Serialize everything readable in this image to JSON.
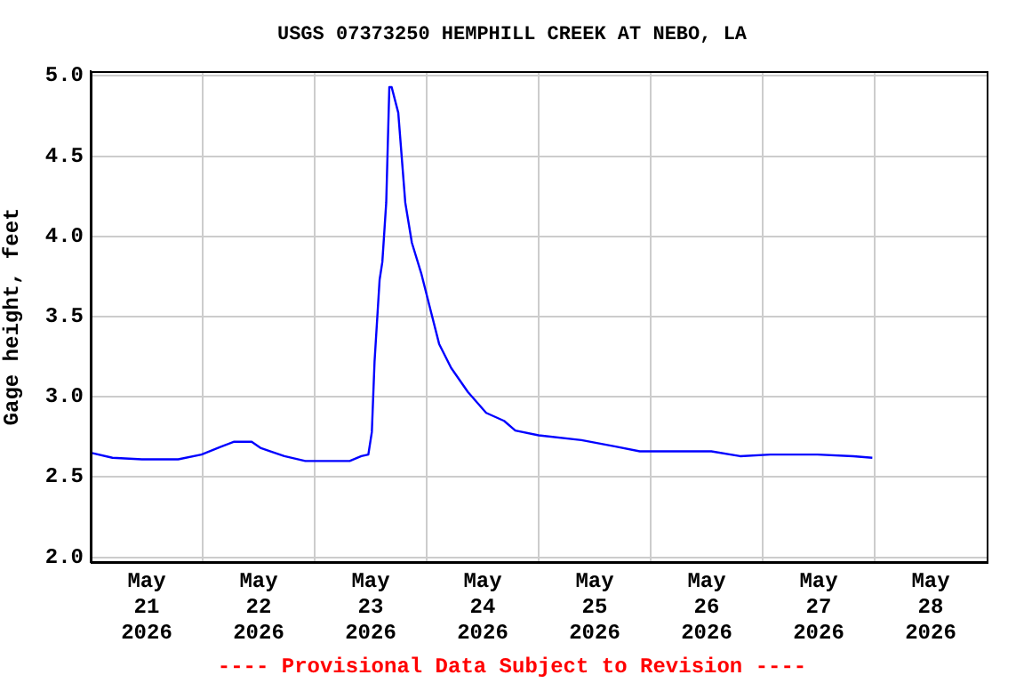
{
  "chart_data": {
    "type": "line",
    "title": "USGS 07373250 HEMPHILL CREEK AT NEBO, LA",
    "ylabel": "Gage height, feet",
    "annotations": [
      "---- Provisional Data Subject to Revision ----"
    ],
    "x": [
      "2026-05-21T00:15",
      "2026-05-21T04:40",
      "2026-05-21T11:00",
      "2026-05-21T18:45",
      "2026-05-21T23:45",
      "2026-05-22T04:00",
      "2026-05-22T06:45",
      "2026-05-22T10:30",
      "2026-05-22T12:30",
      "2026-05-22T17:30",
      "2026-05-22T22:00",
      "2026-05-23T07:30",
      "2026-05-23T10:00",
      "2026-05-23T11:30",
      "2026-05-23T12:15",
      "2026-05-23T12:50",
      "2026-05-23T13:55",
      "2026-05-23T14:30",
      "2026-05-23T15:20",
      "2026-05-23T16:00",
      "2026-05-23T16:30",
      "2026-05-23T17:55",
      "2026-05-23T19:25",
      "2026-05-23T20:50",
      "2026-05-23T22:50",
      "2026-05-24T00:45",
      "2026-05-24T02:40",
      "2026-05-24T05:15",
      "2026-05-24T08:50",
      "2026-05-24T12:45",
      "2026-05-24T16:35",
      "2026-05-24T19:00",
      "2026-05-25T00:00",
      "2026-05-25T09:10",
      "2026-05-25T16:30",
      "2026-05-25T21:40",
      "2026-05-26T13:00",
      "2026-05-26T19:10",
      "2026-05-27T01:40",
      "2026-05-27T11:45",
      "2026-05-27T19:25",
      "2026-05-27T23:30"
    ],
    "series": [
      {
        "color": "#0000ff",
        "values": [
          2.65,
          2.62,
          2.61,
          2.61,
          2.64,
          2.69,
          2.72,
          2.72,
          2.68,
          2.63,
          2.6,
          2.6,
          2.63,
          2.64,
          2.78,
          3.22,
          3.73,
          3.84,
          4.21,
          4.93,
          4.93,
          4.77,
          4.21,
          3.96,
          3.77,
          3.55,
          3.33,
          3.18,
          3.03,
          2.9,
          2.85,
          2.79,
          2.76,
          2.73,
          2.69,
          2.66,
          2.66,
          2.63,
          2.64,
          2.64,
          2.63,
          2.62
        ]
      }
    ],
    "xlim": [
      "2026-05-21T00:00",
      "2026-05-29T00:00"
    ],
    "xticks": [
      {
        "value": "2026-05-21T12:00",
        "label": "May 21 2026"
      },
      {
        "value": "2026-05-22T00:00",
        "label": null
      },
      {
        "value": "2026-05-22T12:00",
        "label": "May 22 2026"
      },
      {
        "value": "2026-05-23T00:00",
        "label": null
      },
      {
        "value": "2026-05-23T12:00",
        "label": "May 23 2026"
      },
      {
        "value": "2026-05-24T00:00",
        "label": null
      },
      {
        "value": "2026-05-24T12:00",
        "label": "May 24 2026"
      },
      {
        "value": "2026-05-25T00:00",
        "label": null
      },
      {
        "value": "2026-05-25T12:00",
        "label": "May 25 2026"
      },
      {
        "value": "2026-05-26T00:00",
        "label": null
      },
      {
        "value": "2026-05-26T12:00",
        "label": "May 26 2026"
      },
      {
        "value": "2026-05-27T00:00",
        "label": null
      },
      {
        "value": "2026-05-27T12:00",
        "label": "May 27 2026"
      },
      {
        "value": "2026-05-28T00:00",
        "label": null
      },
      {
        "value": "2026-05-28T12:00",
        "label": "May 28 2026"
      }
    ],
    "ylim": [
      1.97,
      5.03
    ],
    "yticks": [
      {
        "value": 2,
        "label": "2.0"
      },
      {
        "value": 2.5,
        "label": "2.5"
      },
      {
        "value": 3,
        "label": "3.0"
      },
      {
        "value": 3.5,
        "label": "3.5"
      },
      {
        "value": 4,
        "label": "4.0"
      },
      {
        "value": 4.5,
        "label": "4.5"
      },
      {
        "value": 5,
        "label": "5.0"
      }
    ],
    "grid": true,
    "legend": false,
    "marker": "none",
    "line_style": "solid"
  }
}
